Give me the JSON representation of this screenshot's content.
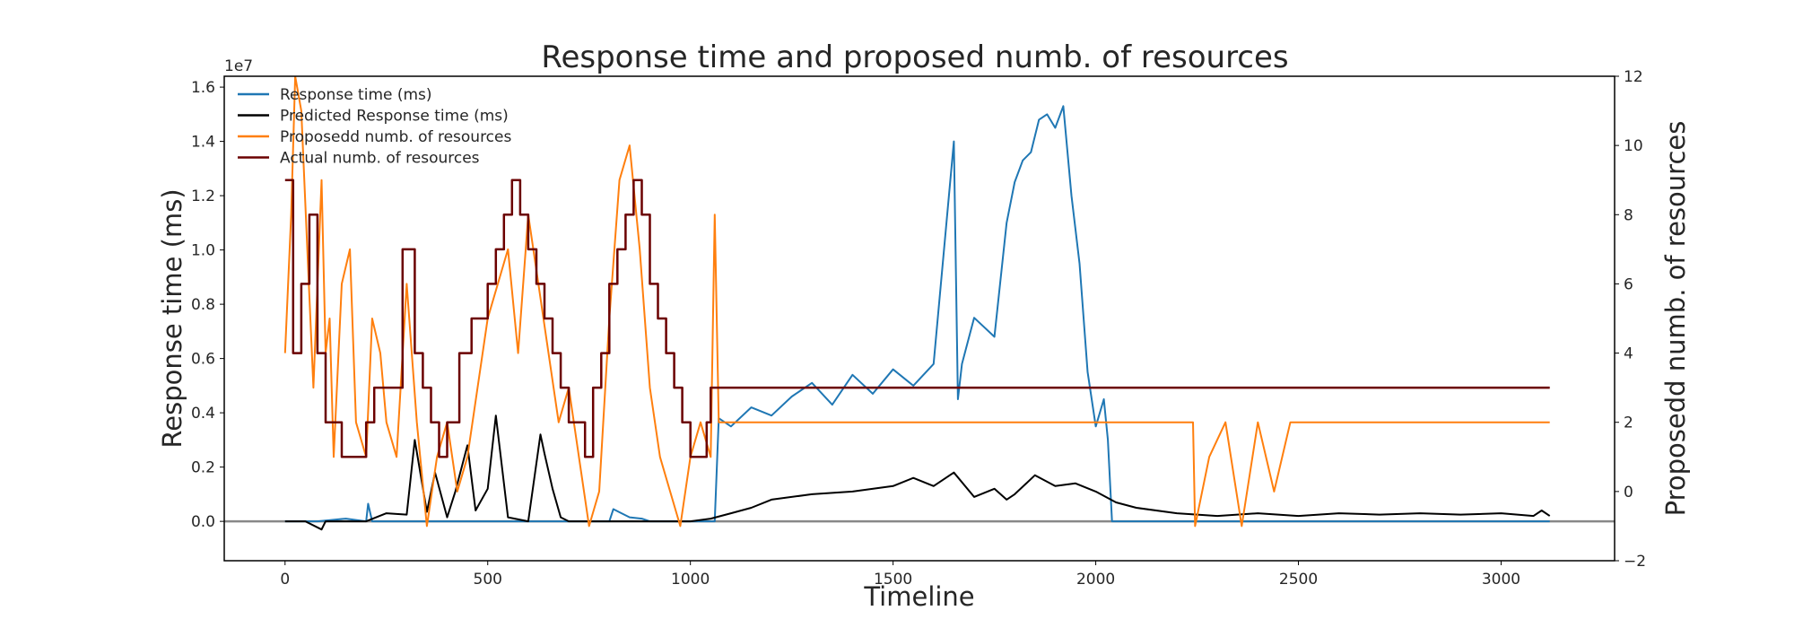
{
  "chart_data": {
    "type": "line",
    "title": "Response time and proposed numb. of resources",
    "xlabel": "Timeline",
    "ylabel": "Response time (ms)",
    "y2label": "Proposedd numb. of resources",
    "y_offset_text": "1e7",
    "xlim": [
      -150,
      3280
    ],
    "ylim": [
      -1450000,
      16400000
    ],
    "y2lim": [
      -2,
      12
    ],
    "xticks": [
      "0",
      "500",
      "1000",
      "1500",
      "2000",
      "2500",
      "3000"
    ],
    "yticks": [
      "0.0",
      "0.2",
      "0.4",
      "0.6",
      "0.8",
      "1.0",
      "1.2",
      "1.4",
      "1.6"
    ],
    "y2ticks": [
      "−2",
      "0",
      "2",
      "4",
      "6",
      "8",
      "10",
      "12"
    ],
    "x_tick_values": [
      0,
      500,
      1000,
      1500,
      2000,
      2500,
      3000
    ],
    "y_tick_values": [
      0,
      2000000,
      4000000,
      6000000,
      8000000,
      10000000,
      12000000,
      14000000,
      16000000
    ],
    "y2_tick_values": [
      -2,
      0,
      2,
      4,
      6,
      8,
      10,
      12
    ],
    "grid": false,
    "legend_position": "top-left",
    "colors": {
      "response": "#1f77b4",
      "predicted": "#000000",
      "proposed": "#ff7f0e",
      "actual": "#6b0000",
      "baseline": "#888888"
    },
    "series": [
      {
        "name": "Response time (ms)",
        "axis": "left",
        "x": [
          0,
          80,
          150,
          200,
          205,
          215,
          300,
          400,
          500,
          600,
          700,
          800,
          810,
          830,
          850,
          880,
          900,
          1000,
          1060,
          1070,
          1100,
          1150,
          1200,
          1250,
          1300,
          1350,
          1400,
          1450,
          1500,
          1550,
          1600,
          1650,
          1660,
          1670,
          1700,
          1750,
          1780,
          1800,
          1820,
          1840,
          1860,
          1880,
          1900,
          1920,
          1940,
          1960,
          1980,
          2000,
          2020,
          2030,
          2040,
          2100,
          2500,
          3000,
          3120
        ],
        "y": [
          0,
          0,
          100000,
          0,
          650000,
          0,
          0,
          0,
          0,
          0,
          0,
          0,
          450000,
          300000,
          150000,
          100000,
          0,
          0,
          0,
          3800000,
          3500000,
          4200000,
          3900000,
          4600000,
          5100000,
          4300000,
          5400000,
          4700000,
          5600000,
          5000000,
          5800000,
          14000000,
          4500000,
          5800000,
          7500000,
          6800000,
          11000000,
          12500000,
          13300000,
          13600000,
          14800000,
          15000000,
          14500000,
          15300000,
          12000000,
          9500000,
          5500000,
          3500000,
          4500000,
          3000000,
          0,
          0,
          0,
          0,
          0
        ]
      },
      {
        "name": "Predicted Response time (ms)",
        "axis": "left",
        "x": [
          0,
          50,
          90,
          100,
          200,
          250,
          300,
          320,
          350,
          370,
          400,
          420,
          450,
          470,
          500,
          520,
          550,
          600,
          630,
          640,
          660,
          680,
          700,
          800,
          900,
          1000,
          1050,
          1100,
          1150,
          1200,
          1300,
          1400,
          1500,
          1550,
          1600,
          1650,
          1700,
          1750,
          1780,
          1800,
          1850,
          1900,
          1950,
          2000,
          2050,
          2100,
          2200,
          2300,
          2400,
          2500,
          2600,
          2700,
          2800,
          2900,
          3000,
          3080,
          3100,
          3120
        ],
        "y": [
          0,
          0,
          -300000,
          0,
          0,
          300000,
          250000,
          3000000,
          350000,
          1800000,
          150000,
          1100000,
          2800000,
          400000,
          1200000,
          3900000,
          150000,
          0,
          3200000,
          2500000,
          1200000,
          150000,
          0,
          0,
          0,
          0,
          100000,
          300000,
          500000,
          800000,
          1000000,
          1100000,
          1300000,
          1600000,
          1300000,
          1800000,
          900000,
          1200000,
          800000,
          1000000,
          1700000,
          1300000,
          1400000,
          1100000,
          700000,
          500000,
          300000,
          200000,
          300000,
          200000,
          300000,
          250000,
          300000,
          250000,
          300000,
          200000,
          400000,
          200000
        ]
      },
      {
        "name": "Proposedd numb. of resources",
        "axis": "right",
        "x": [
          0,
          15,
          25,
          40,
          55,
          70,
          90,
          100,
          110,
          120,
          140,
          160,
          175,
          200,
          215,
          235,
          250,
          275,
          300,
          325,
          350,
          375,
          400,
          425,
          450,
          475,
          500,
          525,
          550,
          575,
          600,
          625,
          650,
          675,
          700,
          725,
          750,
          775,
          800,
          825,
          850,
          875,
          900,
          925,
          950,
          975,
          1000,
          1025,
          1050,
          1060,
          1070,
          2040,
          2240,
          2245,
          2280,
          2320,
          2360,
          2400,
          2440,
          2480,
          2500,
          2600,
          2700,
          2800,
          2900,
          3000,
          3120
        ],
        "y": [
          4,
          8,
          12,
          11,
          7,
          3,
          9,
          4,
          5,
          1,
          6,
          7,
          2,
          1,
          5,
          4,
          2,
          1,
          6,
          2,
          -1,
          1,
          2,
          0,
          1,
          3,
          5,
          6,
          7,
          4,
          8,
          6,
          4,
          2,
          3,
          1,
          -1,
          0,
          5,
          9,
          10,
          7,
          3,
          1,
          0,
          -1,
          1,
          2,
          1,
          8,
          2,
          2,
          2,
          -1,
          1,
          2,
          -1,
          2,
          0,
          2,
          2,
          2,
          2,
          2,
          2,
          2,
          2
        ]
      },
      {
        "name": "Actual numb. of resources",
        "axis": "right",
        "x": [
          0,
          20,
          40,
          60,
          80,
          100,
          140,
          180,
          200,
          220,
          260,
          290,
          300,
          320,
          340,
          360,
          380,
          400,
          430,
          460,
          500,
          520,
          540,
          560,
          580,
          600,
          620,
          640,
          660,
          680,
          700,
          740,
          760,
          780,
          800,
          820,
          840,
          860,
          880,
          900,
          920,
          940,
          960,
          980,
          1000,
          1020,
          1040,
          1050,
          3120
        ],
        "y": [
          9,
          4,
          6,
          8,
          4,
          2,
          1,
          1,
          2,
          3,
          3,
          7,
          7,
          4,
          3,
          2,
          1,
          2,
          4,
          5,
          6,
          7,
          8,
          9,
          8,
          7,
          6,
          5,
          4,
          3,
          2,
          1,
          3,
          4,
          6,
          7,
          8,
          9,
          8,
          6,
          5,
          4,
          3,
          2,
          1,
          1,
          2,
          3,
          3
        ]
      }
    ]
  }
}
